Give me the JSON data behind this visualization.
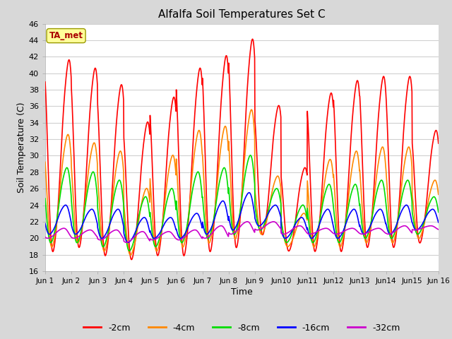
{
  "title": "Alfalfa Soil Temperatures Set C",
  "xlabel": "Time",
  "ylabel": "Soil Temperature (C)",
  "ylim": [
    16,
    46
  ],
  "xlim": [
    0,
    15
  ],
  "fig_bg_color": "#d8d8d8",
  "plot_bg_color": "#ffffff",
  "grid_color": "#d0d0d0",
  "series_colors": {
    "-2cm": "#ff0000",
    "-4cm": "#ff8800",
    "-8cm": "#00dd00",
    "-16cm": "#0000ff",
    "-32cm": "#cc00cc"
  },
  "series_lw": {
    "-2cm": 1.2,
    "-4cm": 1.2,
    "-8cm": 1.2,
    "-16cm": 1.2,
    "-32cm": 1.2
  },
  "ta_met_label": "TA_met",
  "ta_met_color": "#aa0000",
  "ta_met_bg": "#ffff99",
  "ta_met_edge": "#999900",
  "xtick_labels": [
    "Jun 1",
    "Jun 2",
    "Jun 3",
    "Jun 4",
    "Jun 5",
    "Jun 6",
    "Jun 7",
    "Jun 8",
    "Jun 9",
    "Jun10",
    "Jun11",
    "Jun12",
    "Jun13",
    "Jun14",
    "Jun15",
    "Jun 16"
  ],
  "legend_labels": [
    "-2cm",
    "-4cm",
    "-8cm",
    "-16cm",
    "-32cm"
  ],
  "peaks_2cm": [
    41.5,
    40.5,
    38.5,
    34.0,
    37.0,
    40.5,
    42.0,
    44.0,
    36.0,
    28.5,
    37.5,
    39.0,
    39.5,
    39.5,
    33.0
  ],
  "troughs_2cm": [
    18.5,
    19.0,
    18.0,
    17.5,
    18.0,
    18.0,
    18.5,
    19.0,
    20.5,
    18.5,
    18.5,
    18.5,
    19.0,
    19.0,
    19.5
  ],
  "peaks_4cm": [
    32.5,
    31.5,
    30.5,
    26.0,
    30.0,
    33.0,
    33.5,
    35.5,
    27.5,
    23.0,
    29.5,
    30.5,
    31.0,
    31.0,
    27.0
  ],
  "troughs_4cm": [
    19.0,
    19.5,
    18.5,
    18.0,
    18.5,
    19.0,
    19.5,
    20.0,
    20.5,
    19.0,
    19.0,
    19.0,
    19.5,
    19.5,
    20.0
  ],
  "peaks_8cm": [
    28.5,
    28.0,
    27.0,
    25.0,
    26.0,
    28.0,
    28.5,
    30.0,
    26.0,
    24.0,
    26.5,
    26.5,
    27.0,
    27.0,
    25.0
  ],
  "troughs_8cm": [
    19.5,
    19.5,
    19.0,
    18.5,
    19.0,
    19.5,
    20.0,
    20.5,
    21.0,
    19.5,
    19.5,
    19.5,
    20.0,
    20.0,
    20.5
  ],
  "peaks_16cm": [
    24.0,
    23.5,
    23.5,
    22.5,
    22.5,
    23.0,
    24.5,
    25.5,
    24.0,
    22.5,
    23.5,
    23.5,
    23.5,
    24.0,
    23.5
  ],
  "troughs_16cm": [
    20.5,
    20.5,
    20.0,
    19.5,
    20.0,
    20.0,
    20.5,
    21.0,
    21.5,
    20.0,
    20.0,
    20.0,
    20.5,
    20.5,
    21.0
  ],
  "peaks_32cm": [
    21.2,
    21.0,
    21.0,
    20.8,
    20.8,
    21.0,
    21.5,
    22.0,
    22.0,
    21.5,
    21.2,
    21.2,
    21.2,
    21.5,
    21.5
  ],
  "troughs_32cm": [
    20.0,
    20.0,
    19.8,
    19.5,
    19.8,
    19.8,
    20.0,
    20.5,
    21.0,
    20.5,
    20.5,
    20.5,
    20.5,
    20.5,
    21.0
  ]
}
